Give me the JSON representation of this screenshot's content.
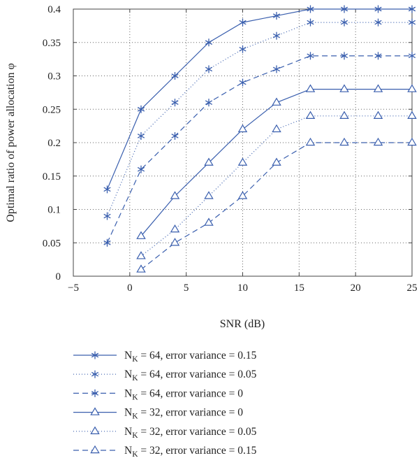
{
  "chart_data": {
    "type": "line",
    "title": "",
    "xlabel": "SNR (dB)",
    "ylabel": "Optimal ratio of power allocation φ",
    "xlim": [
      -5,
      25
    ],
    "ylim": [
      0,
      0.4
    ],
    "xticks": [
      -5,
      0,
      5,
      10,
      15,
      20,
      25
    ],
    "xtick_labels": [
      "−5",
      "0",
      "5",
      "10",
      "15",
      "20",
      "25"
    ],
    "yticks": [
      0,
      0.05,
      0.1,
      0.15,
      0.2,
      0.25,
      0.3,
      0.35,
      0.4
    ],
    "ytick_labels": [
      "0",
      "0.05",
      "0.1",
      "0.15",
      "0.2",
      "0.25",
      "0.3",
      "0.35",
      "0.4"
    ],
    "grid": true,
    "legend_position": "below",
    "line_color": "#3a5fae",
    "series": [
      {
        "name_base": "N",
        "name_sub": "K",
        "name_rest": " = 64, error variance = 0.15",
        "marker": "asterisk",
        "dash": "solid",
        "x": [
          -2,
          1,
          4,
          7,
          10,
          13,
          16,
          19,
          22,
          25
        ],
        "y": [
          0.13,
          0.25,
          0.3,
          0.35,
          0.38,
          0.39,
          0.4,
          0.4,
          0.4,
          0.4
        ]
      },
      {
        "name_base": "N",
        "name_sub": "K",
        "name_rest": " = 64, error variance = 0.05",
        "marker": "asterisk",
        "dash": "dotted",
        "x": [
          -2,
          1,
          4,
          7,
          10,
          13,
          16,
          19,
          22,
          25
        ],
        "y": [
          0.09,
          0.21,
          0.26,
          0.31,
          0.34,
          0.36,
          0.38,
          0.38,
          0.38,
          0.38
        ]
      },
      {
        "name_base": "N",
        "name_sub": "K",
        "name_rest": " = 64, error variance = 0",
        "marker": "asterisk",
        "dash": "dashed",
        "x": [
          -2,
          1,
          4,
          7,
          10,
          13,
          16,
          19,
          22,
          25
        ],
        "y": [
          0.05,
          0.16,
          0.21,
          0.26,
          0.29,
          0.31,
          0.33,
          0.33,
          0.33,
          0.33
        ]
      },
      {
        "name_base": "N",
        "name_sub": "K",
        "name_rest": " = 32, error variance = 0",
        "marker": "triangle",
        "dash": "solid",
        "x": [
          1,
          4,
          7,
          10,
          13,
          16,
          19,
          22,
          25
        ],
        "y": [
          0.06,
          0.12,
          0.17,
          0.22,
          0.26,
          0.28,
          0.28,
          0.28,
          0.28
        ]
      },
      {
        "name_base": "N",
        "name_sub": "K",
        "name_rest": " = 32, error variance = 0.05",
        "marker": "triangle",
        "dash": "dotted",
        "x": [
          1,
          4,
          7,
          10,
          13,
          16,
          19,
          22,
          25
        ],
        "y": [
          0.03,
          0.07,
          0.12,
          0.17,
          0.22,
          0.24,
          0.24,
          0.24,
          0.24
        ]
      },
      {
        "name_base": "N",
        "name_sub": "K",
        "name_rest": " = 32, error variance = 0.15",
        "marker": "triangle",
        "dash": "dashed",
        "x": [
          1,
          4,
          7,
          10,
          13,
          16,
          19,
          22,
          25
        ],
        "y": [
          0.01,
          0.05,
          0.08,
          0.12,
          0.17,
          0.2,
          0.2,
          0.2,
          0.2
        ]
      }
    ]
  }
}
